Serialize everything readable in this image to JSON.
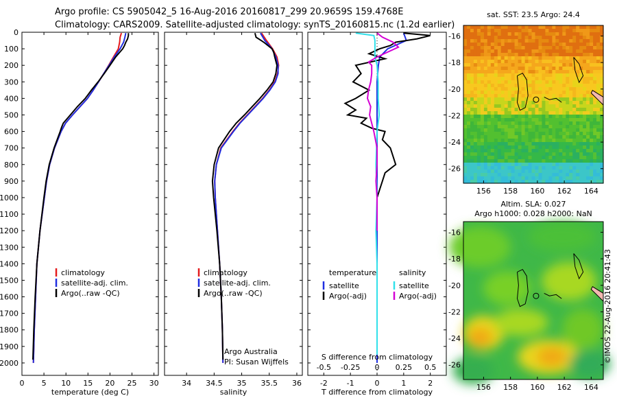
{
  "header": {
    "line1": "Argo profile: CS 5905042_5 16-Aug-2016 20160817_299 20.9659S 159.4768E",
    "line2": "Climatology: CARS2009. Satellite-adjusted climatology: synTS_20160815.nc (1.2d earlier)"
  },
  "stamp": "©IMOS 22-Aug-2016 20:41:43",
  "colors": {
    "climatology": "#e41a1c",
    "satellite": "#1f2ee0",
    "argo": "#000000",
    "sal_satellite": "#30e0ea",
    "sal_argo": "#d400d4"
  },
  "chart_data": [
    {
      "type": "line",
      "xlabel": "temperature (deg C)",
      "xlim": [
        0,
        31
      ],
      "xticks": [
        0,
        5,
        10,
        15,
        20,
        25,
        30
      ],
      "ylim": [
        0,
        2075
      ],
      "yticks": [
        0,
        100,
        200,
        300,
        400,
        500,
        600,
        700,
        800,
        900,
        1000,
        1100,
        1200,
        1300,
        1400,
        1500,
        1600,
        1700,
        1800,
        1900,
        2000
      ],
      "inverted_y": true,
      "legend": [
        "climatology",
        "satellite-adj. clim.",
        "Argo(..raw -QC)"
      ],
      "legend_placement": "lower-right",
      "series": [
        {
          "name": "climatology",
          "y": [
            5,
            30,
            60,
            100,
            150,
            200,
            250,
            300,
            350,
            400,
            450,
            500,
            550,
            600,
            700,
            800,
            900,
            1000,
            1200,
            1400,
            1600,
            1800,
            2000
          ],
          "x": [
            22.6,
            22.3,
            22.2,
            21.9,
            20.8,
            19.7,
            18.6,
            17.4,
            16.2,
            14.9,
            13.2,
            11.5,
            9.9,
            8.9,
            7.4,
            6.3,
            5.6,
            5.1,
            4.1,
            3.4,
            3.1,
            2.8,
            2.6
          ]
        },
        {
          "name": "satellite-adj. clim.",
          "y": [
            5,
            30,
            60,
            100,
            150,
            200,
            250,
            300,
            350,
            400,
            450,
            500,
            550,
            600,
            700,
            800,
            900,
            1000,
            1200,
            1400,
            1600,
            1800,
            2000
          ],
          "x": [
            23.6,
            23.4,
            23.1,
            22.3,
            21.0,
            19.8,
            18.6,
            17.4,
            16.2,
            14.9,
            13.2,
            11.5,
            9.9,
            8.9,
            7.4,
            6.3,
            5.6,
            5.1,
            4.1,
            3.4,
            3.1,
            2.8,
            2.6
          ]
        },
        {
          "name": "Argo(..raw -QC)",
          "y": [
            5,
            20,
            40,
            60,
            80,
            100,
            150,
            200,
            250,
            300,
            350,
            400,
            450,
            500,
            550,
            575,
            600,
            700,
            800,
            900,
            1000,
            1200,
            1400,
            1600,
            1800,
            1980
          ],
          "x": [
            24.2,
            24.2,
            24.0,
            23.6,
            23.3,
            22.9,
            21.3,
            20.0,
            18.7,
            17.3,
            15.8,
            14.4,
            12.6,
            11.0,
            9.4,
            9.0,
            8.7,
            7.3,
            6.2,
            5.5,
            5.0,
            4.1,
            3.4,
            3.0,
            2.7,
            2.5
          ]
        }
      ]
    },
    {
      "type": "line",
      "xlabel": "salinity",
      "xlim": [
        33.6,
        36.1
      ],
      "xticks": [
        34,
        34.5,
        35,
        35.5,
        36
      ],
      "ylim": [
        0,
        2075
      ],
      "inverted_y": true,
      "legend": [
        "climatology",
        "satellite-adj. clim.",
        "Argo(..raw -QC)"
      ],
      "legend_placement": "lower-right",
      "annotation": [
        "Argo Australia",
        "PI: Susan Wijffels"
      ],
      "series": [
        {
          "name": "climatology",
          "y": [
            5,
            50,
            100,
            150,
            200,
            250,
            300,
            350,
            400,
            450,
            500,
            550,
            600,
            700,
            800,
            900,
            1000,
            1200,
            1400,
            1600,
            1800,
            2000
          ],
          "x": [
            35.36,
            35.45,
            35.56,
            35.64,
            35.67,
            35.65,
            35.6,
            35.5,
            35.38,
            35.24,
            35.1,
            34.96,
            34.84,
            34.62,
            34.54,
            34.51,
            34.52,
            34.56,
            34.6,
            34.63,
            34.65,
            34.66
          ]
        },
        {
          "name": "satellite-adj. clim.",
          "y": [
            5,
            50,
            100,
            150,
            200,
            250,
            300,
            350,
            400,
            450,
            500,
            550,
            600,
            700,
            800,
            900,
            1000,
            1200,
            1400,
            1600,
            1800,
            2000
          ],
          "x": [
            35.34,
            35.42,
            35.55,
            35.62,
            35.66,
            35.66,
            35.61,
            35.51,
            35.39,
            35.25,
            35.11,
            34.97,
            34.85,
            34.63,
            34.54,
            34.51,
            34.52,
            34.56,
            34.6,
            34.63,
            34.65,
            34.66
          ]
        },
        {
          "name": "Argo(..raw -QC)",
          "y": [
            5,
            30,
            60,
            100,
            120,
            150,
            200,
            250,
            300,
            350,
            400,
            450,
            500,
            550,
            600,
            700,
            800,
            900,
            1000,
            1200,
            1400,
            1600,
            1800,
            1980
          ],
          "x": [
            35.24,
            35.26,
            35.4,
            35.55,
            35.58,
            35.6,
            35.64,
            35.62,
            35.57,
            35.46,
            35.33,
            35.19,
            35.05,
            34.9,
            34.78,
            34.58,
            34.5,
            34.47,
            34.49,
            34.55,
            34.6,
            34.63,
            34.65,
            34.66
          ]
        }
      ]
    },
    {
      "type": "line",
      "xlabel": "T difference from climatology",
      "xlabel2": "S difference from climatology",
      "xlim": [
        -2.6,
        2.6
      ],
      "xticks": [
        -2,
        -1,
        0,
        1,
        2
      ],
      "xticks2_labels": [
        "-0.5",
        "-0.25",
        "0",
        "0.25",
        "0.5"
      ],
      "xticks2_values": [
        -0.5,
        -0.25,
        0,
        0.25,
        0.5
      ],
      "ylim": [
        0,
        2075
      ],
      "inverted_y": true,
      "legend_temperature": [
        "temperature",
        "satellite",
        "Argo(-adj)"
      ],
      "legend_salinity": [
        "salinity",
        "satellite",
        "Argo(-adj)"
      ],
      "series": [
        {
          "name": "satellite",
          "variable": "temperature",
          "y": [
            5,
            50,
            100,
            150,
            200,
            300,
            400,
            600,
            800,
            1000,
            1200,
            1400,
            1600,
            1800,
            2000
          ],
          "x": [
            1.0,
            1.1,
            0.4,
            0.1,
            0.05,
            0.0,
            0.0,
            0.0,
            0.0,
            0.0,
            0.0,
            0.0,
            0.0,
            0.0,
            0.0
          ]
        },
        {
          "name": "Argo(-adj)",
          "variable": "temperature",
          "y": [
            5,
            20,
            40,
            60,
            80,
            100,
            130,
            160,
            200,
            250,
            300,
            350,
            400,
            430,
            470,
            500,
            520,
            550,
            580,
            600,
            650,
            700,
            750,
            800,
            850,
            900,
            950,
            1000
          ],
          "x": [
            1.0,
            2.0,
            1.5,
            0.7,
            0.5,
            0.1,
            -0.3,
            0.3,
            -0.8,
            -0.6,
            -0.9,
            -0.3,
            -0.8,
            -1.2,
            -0.8,
            -1.1,
            -0.4,
            -0.6,
            -0.2,
            0.3,
            0.2,
            0.5,
            0.6,
            0.7,
            0.3,
            0.2,
            0.1,
            0.0
          ]
        },
        {
          "name": "satellite",
          "variable": "salinity",
          "y": [
            5,
            20,
            50,
            100,
            150,
            200,
            300,
            400,
            500,
            600,
            800,
            1000,
            1200,
            1400,
            1600,
            1800,
            1950
          ],
          "x": [
            -0.2,
            -0.03,
            -0.02,
            -0.02,
            -0.02,
            0.0,
            0.01,
            0.01,
            0.02,
            0.0,
            -0.01,
            0.0,
            -0.01,
            0.0,
            0.0,
            0.0,
            0.0
          ]
        },
        {
          "name": "Argo(-adj)",
          "variable": "salinity",
          "y": [
            5,
            30,
            60,
            90,
            120,
            150,
            180,
            200,
            250,
            300,
            350,
            400,
            450,
            500,
            550,
            600,
            700,
            800,
            900,
            1000,
            1200
          ],
          "x": [
            0.0,
            0.05,
            0.15,
            0.2,
            0.1,
            0.0,
            -0.08,
            -0.05,
            -0.05,
            -0.06,
            -0.08,
            -0.09,
            -0.06,
            -0.07,
            -0.05,
            -0.03,
            0.0,
            0.0,
            -0.01,
            0.0,
            0.0
          ]
        }
      ]
    },
    {
      "type": "heatmap",
      "title": "sat. SST: 23.5 Argo: 24.4",
      "xticks": [
        156,
        158,
        160,
        162,
        164
      ],
      "yticks": [
        -16,
        -18,
        -20,
        -22,
        -24,
        -26
      ],
      "xlim": [
        154.5,
        164.9
      ],
      "ylim": [
        -27.1,
        -15.2
      ]
    },
    {
      "type": "heatmap",
      "title": "Altim. SLA: 0.027",
      "subtitle": "Argo h1000: 0.028 h2000: NaN",
      "xticks": [
        156,
        158,
        160,
        162,
        164
      ],
      "yticks": [
        -16,
        -18,
        -20,
        -22,
        -24,
        -26
      ],
      "xlim": [
        154.5,
        164.9
      ],
      "ylim": [
        -27.1,
        -15.2
      ]
    }
  ]
}
